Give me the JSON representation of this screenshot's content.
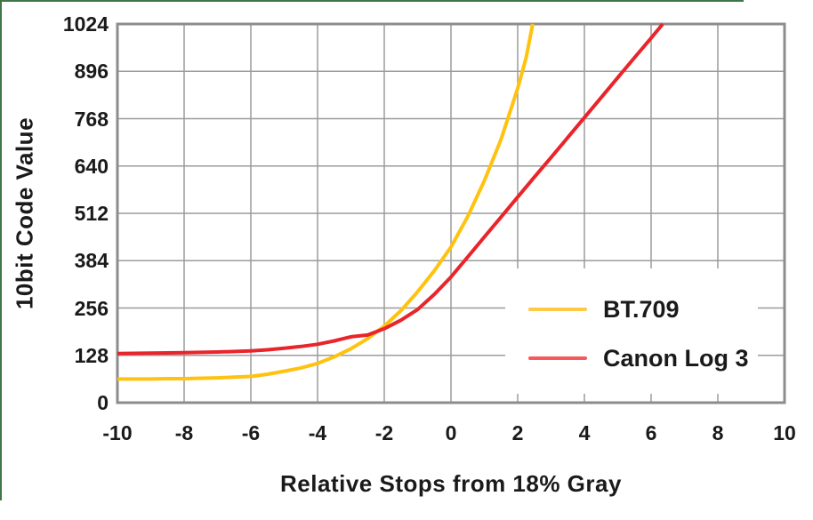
{
  "chart_data": {
    "type": "line",
    "title": "",
    "xlabel": "Relative Stops from 18% Gray",
    "ylabel": "10bit Code Value",
    "xlim": [
      -10,
      10
    ],
    "ylim": [
      0,
      1024
    ],
    "xticks": [
      -10,
      -8,
      -6,
      -4,
      -2,
      0,
      2,
      4,
      6,
      8,
      10
    ],
    "yticks": [
      0,
      128,
      256,
      384,
      512,
      640,
      768,
      896,
      1024
    ],
    "grid": true,
    "legend_position": "lower right",
    "series": [
      {
        "name": "BT.709",
        "color": "#FFC20E",
        "legend_color": "#FFC845",
        "points": [
          [
            -10,
            64
          ],
          [
            -9.5,
            64
          ],
          [
            -9,
            64
          ],
          [
            -8.5,
            65
          ],
          [
            -8,
            65
          ],
          [
            -7.5,
            66
          ],
          [
            -7,
            67
          ],
          [
            -6.5,
            69
          ],
          [
            -6,
            71
          ],
          [
            -5.5,
            77
          ],
          [
            -5,
            85
          ],
          [
            -4.5,
            94
          ],
          [
            -4,
            106
          ],
          [
            -3.5,
            124
          ],
          [
            -3,
            146
          ],
          [
            -2.5,
            173
          ],
          [
            -2,
            207
          ],
          [
            -1.5,
            249
          ],
          [
            -1,
            300
          ],
          [
            -0.5,
            357
          ],
          [
            0,
            421
          ],
          [
            0.5,
            503
          ],
          [
            1,
            600
          ],
          [
            1.5,
            712
          ],
          [
            2,
            850
          ],
          [
            2.25,
            932
          ],
          [
            2.45,
            1024
          ]
        ]
      },
      {
        "name": "Canon Log 3",
        "color": "#E9242B",
        "legend_color": "#F4595B",
        "points": [
          [
            -10,
            133
          ],
          [
            -9,
            134
          ],
          [
            -8,
            135
          ],
          [
            -7,
            137
          ],
          [
            -6,
            140
          ],
          [
            -5.5,
            143
          ],
          [
            -5,
            147
          ],
          [
            -4.5,
            152
          ],
          [
            -4,
            158
          ],
          [
            -3.5,
            167
          ],
          [
            -3,
            178
          ],
          [
            -2.5,
            183
          ],
          [
            -2,
            200
          ],
          [
            -1.5,
            223
          ],
          [
            -1,
            252
          ],
          [
            -0.5,
            293
          ],
          [
            0,
            340
          ],
          [
            0.5,
            394
          ],
          [
            1,
            448
          ],
          [
            1.5,
            502
          ],
          [
            2,
            556
          ],
          [
            2.5,
            610
          ],
          [
            3,
            663
          ],
          [
            3.5,
            717
          ],
          [
            4,
            771
          ],
          [
            4.5,
            825
          ],
          [
            5,
            879
          ],
          [
            5.5,
            933
          ],
          [
            6,
            986
          ],
          [
            6.35,
            1024
          ]
        ]
      }
    ]
  },
  "colors": {
    "background": "#FFFFFF",
    "plot_border": "#8C8C8C",
    "gridline": "#9B9B9B",
    "text": "#1A1A1A",
    "frame_border_green": "#40754A"
  }
}
